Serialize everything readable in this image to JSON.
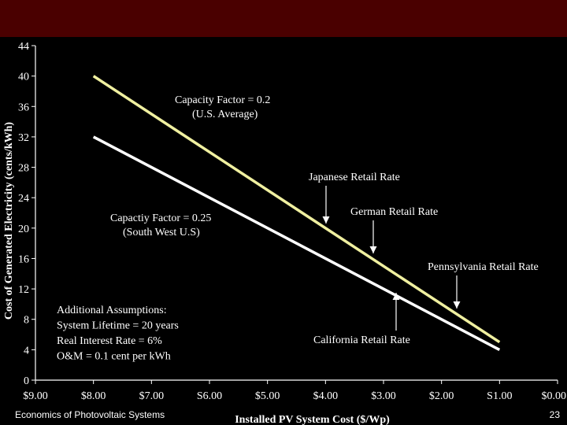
{
  "slide": {
    "footer_title": "Economics of Photovoltaic Systems",
    "page_number": "23",
    "banner_color": "#4a0000",
    "background_color": "#000000"
  },
  "chart_data": {
    "type": "line",
    "xlabel": "Installed PV System Cost ($/Wp)",
    "ylabel": "Cost of Generated Electricity (cents/kWh)",
    "xlim": [
      9.0,
      0.0
    ],
    "ylim": [
      0,
      44
    ],
    "x_reversed": true,
    "x_tick_labels": [
      "$9.00",
      "$8.00",
      "$7.00",
      "S6.00",
      "$5.00",
      "$4.00",
      "$3.00",
      "$2.00",
      "S1.00",
      "$0.00"
    ],
    "x_tick_values": [
      9,
      8,
      7,
      6,
      5,
      4,
      3,
      2,
      1,
      0
    ],
    "y_ticks": [
      0,
      4,
      8,
      12,
      16,
      20,
      24,
      28,
      32,
      36,
      40,
      44
    ],
    "grid": false,
    "series": [
      {
        "name": "Capacity Factor = 0.2 (U.S. Average)",
        "color": "#f0f0a0",
        "points": [
          [
            8.0,
            40.0
          ],
          [
            1.0,
            5.0
          ]
        ]
      },
      {
        "name": "Capactiy Factor = 0.25 (South West U.S)",
        "color": "#ffffff",
        "points": [
          [
            8.0,
            32.0
          ],
          [
            1.0,
            4.0
          ]
        ]
      }
    ],
    "annotations": [
      {
        "id": "cf02",
        "lines": [
          "Capacity Factor = 0.2",
          "(U.S. Average)"
        ]
      },
      {
        "id": "cf025",
        "lines": [
          "Capactiy Factor = 0.25",
          "(South West U.S)"
        ]
      },
      {
        "id": "japan",
        "lines": [
          "Japanese Retail Rate"
        ]
      },
      {
        "id": "germany",
        "lines": [
          "German Retail Rate"
        ]
      },
      {
        "id": "pennsylvania",
        "lines": [
          "Pennsylvania Retail Rate"
        ]
      },
      {
        "id": "california",
        "lines": [
          "California Retail Rate"
        ]
      },
      {
        "id": "assumptions",
        "lines": [
          "Additional Assumptions:",
          "System Lifetime = 20 years",
          "Real Interest Rate = 6%",
          "O&M = 0.1 cent per kWh"
        ]
      }
    ]
  }
}
